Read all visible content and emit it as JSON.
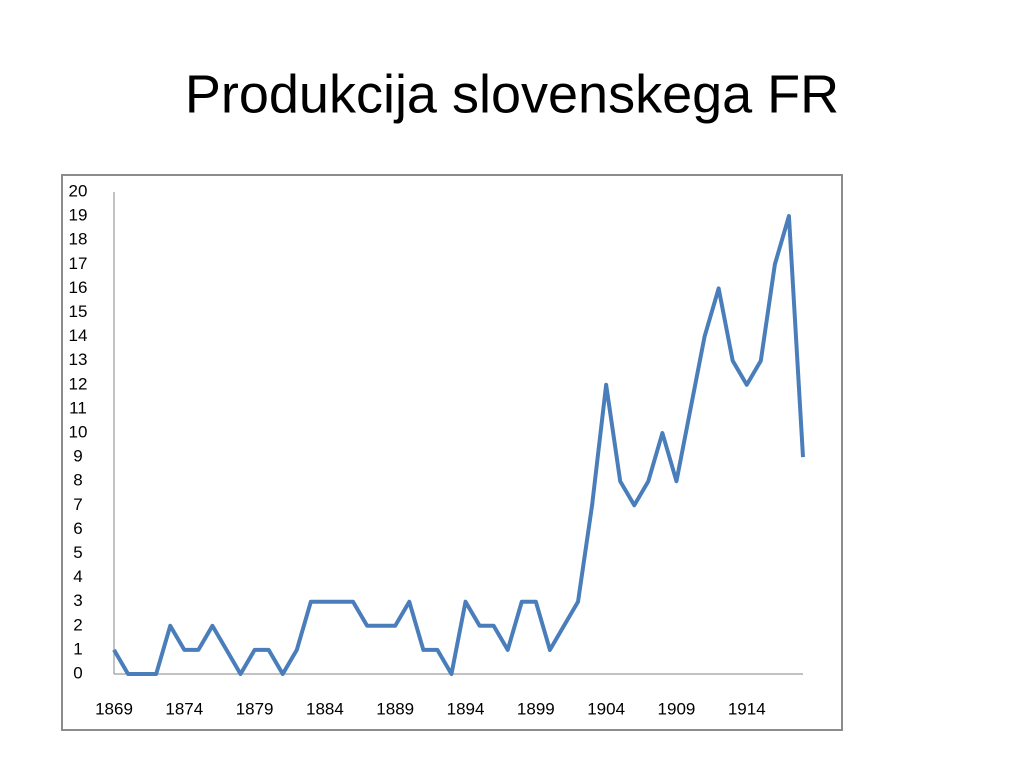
{
  "chart_data": {
    "type": "line",
    "title": "Produkcija slovenskega FR",
    "x": [
      1869,
      1870,
      1871,
      1872,
      1873,
      1874,
      1875,
      1876,
      1877,
      1878,
      1879,
      1880,
      1881,
      1882,
      1883,
      1884,
      1885,
      1886,
      1887,
      1888,
      1889,
      1890,
      1891,
      1892,
      1893,
      1894,
      1895,
      1896,
      1897,
      1898,
      1899,
      1900,
      1901,
      1902,
      1903,
      1904,
      1905,
      1906,
      1907,
      1908,
      1909,
      1910,
      1911,
      1912,
      1913,
      1914,
      1915,
      1916,
      1917,
      1918
    ],
    "series": [
      {
        "color": "#4a7ebb",
        "values": [
          1,
          0,
          0,
          0,
          2,
          1,
          1,
          2,
          1,
          0,
          1,
          1,
          0,
          1,
          3,
          3,
          3,
          3,
          2,
          2,
          2,
          3,
          1,
          1,
          0,
          3,
          2,
          2,
          1,
          3,
          3,
          1,
          2,
          3,
          7,
          12,
          8,
          7,
          8,
          10,
          8,
          11,
          14,
          16,
          13,
          12,
          13,
          17,
          19,
          9
        ]
      }
    ],
    "xlim": [
      1869,
      1918
    ],
    "xticks": [
      1869,
      1874,
      1879,
      1884,
      1889,
      1894,
      1899,
      1904,
      1909,
      1914
    ],
    "ylim": [
      0,
      20
    ],
    "yticks": [
      0,
      1,
      2,
      3,
      4,
      5,
      6,
      7,
      8,
      9,
      10,
      11,
      12,
      13,
      14,
      15,
      16,
      17,
      18,
      19,
      20
    ],
    "grid": false
  }
}
